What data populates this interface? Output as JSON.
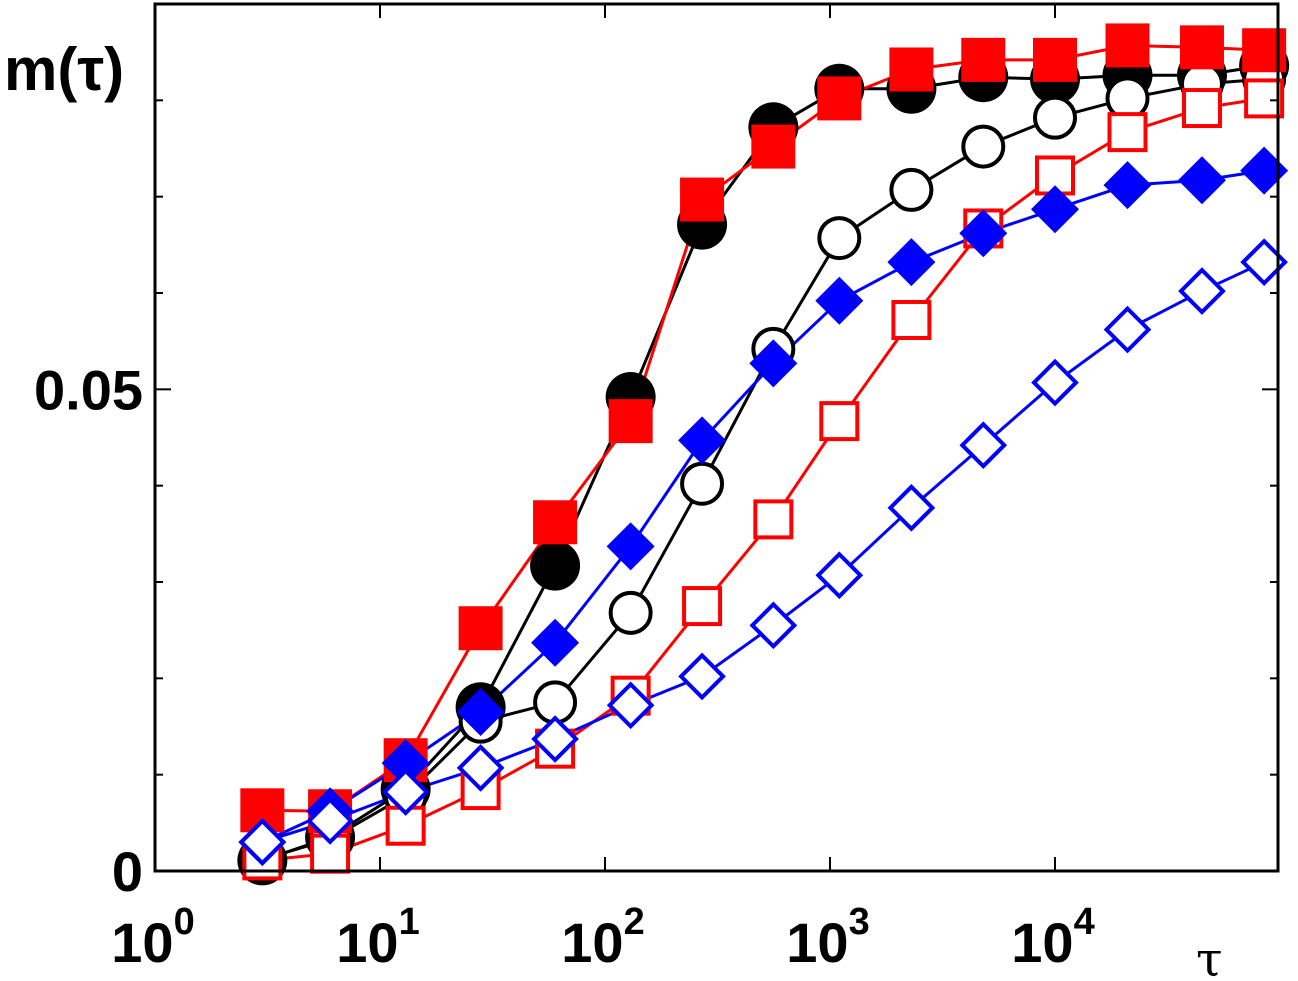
{
  "chart_data": {
    "type": "scatter",
    "title": "",
    "ylabel": "m(τ)",
    "xlabel": "τ",
    "x_scale": "log",
    "xlim": [
      1,
      90000
    ],
    "ylim": [
      0,
      0.09
    ],
    "x_ticks": [
      {
        "value": 1,
        "base": "10",
        "exp": "0"
      },
      {
        "value": 10,
        "base": "10",
        "exp": "1"
      },
      {
        "value": 100,
        "base": "10",
        "exp": "2"
      },
      {
        "value": 1000,
        "base": "10",
        "exp": "3"
      },
      {
        "value": 10000,
        "base": "10",
        "exp": "4"
      }
    ],
    "y_ticks": [
      {
        "value": 0,
        "label": "0"
      },
      {
        "value": 0.05,
        "label": "0.05"
      }
    ],
    "y_minor_step": 0.01,
    "grid": false,
    "series": [
      {
        "marker": "circle",
        "filled": true,
        "color": "#000000",
        "line_color": "#000000",
        "points": [
          [
            3,
            0.0011
          ],
          [
            6,
            0.0035
          ],
          [
            13,
            0.0085
          ],
          [
            28,
            0.017
          ],
          [
            60,
            0.0317
          ],
          [
            130,
            0.0492
          ],
          [
            270,
            0.0671
          ],
          [
            560,
            0.0772
          ],
          [
            1100,
            0.0812
          ],
          [
            2300,
            0.0812
          ],
          [
            4800,
            0.0824
          ],
          [
            10000,
            0.0822
          ],
          [
            21000,
            0.0826
          ],
          [
            45000,
            0.0826
          ],
          [
            85000,
            0.0836
          ]
        ]
      },
      {
        "marker": "circle",
        "filled": false,
        "color": "#000000",
        "line_color": "#000000",
        "points": [
          [
            3,
            0.0012
          ],
          [
            6,
            0.0033
          ],
          [
            13,
            0.0078
          ],
          [
            28,
            0.0155
          ],
          [
            60,
            0.0175
          ],
          [
            130,
            0.0268
          ],
          [
            270,
            0.0402
          ],
          [
            560,
            0.0542
          ],
          [
            1100,
            0.0657
          ],
          [
            2300,
            0.0707
          ],
          [
            4800,
            0.0752
          ],
          [
            10000,
            0.0782
          ],
          [
            21000,
            0.0802
          ],
          [
            45000,
            0.0817
          ],
          [
            85000,
            0.0822
          ]
        ]
      },
      {
        "marker": "square",
        "filled": true,
        "color": "#ff0000",
        "line_color": "#ff0000",
        "points": [
          [
            3,
            0.0063
          ],
          [
            6,
            0.0062
          ],
          [
            13,
            0.0115
          ],
          [
            28,
            0.0252
          ],
          [
            60,
            0.0362
          ],
          [
            130,
            0.0467
          ],
          [
            270,
            0.0697
          ],
          [
            560,
            0.0752
          ],
          [
            1100,
            0.0802
          ],
          [
            2300,
            0.0832
          ],
          [
            4800,
            0.0842
          ],
          [
            10000,
            0.0842
          ],
          [
            21000,
            0.0857
          ],
          [
            45000,
            0.0855
          ],
          [
            85000,
            0.0852
          ]
        ]
      },
      {
        "marker": "square",
        "filled": false,
        "color": "#ff0000",
        "line_color": "#ff0000",
        "points": [
          [
            3,
            0.0011
          ],
          [
            6,
            0.0018
          ],
          [
            13,
            0.0047
          ],
          [
            28,
            0.0084
          ],
          [
            60,
            0.0127
          ],
          [
            130,
            0.0182
          ],
          [
            270,
            0.0275
          ],
          [
            560,
            0.0365
          ],
          [
            1100,
            0.0467
          ],
          [
            2300,
            0.0572
          ],
          [
            4800,
            0.0667
          ],
          [
            10000,
            0.0722
          ],
          [
            21000,
            0.0767
          ],
          [
            45000,
            0.0792
          ],
          [
            85000,
            0.0802
          ]
        ]
      },
      {
        "marker": "diamond",
        "filled": true,
        "color": "#0000ff",
        "line_color": "#0000ff",
        "points": [
          [
            3,
            0.003
          ],
          [
            6,
            0.0062
          ],
          [
            13,
            0.0112
          ],
          [
            28,
            0.0165
          ],
          [
            60,
            0.0237
          ],
          [
            130,
            0.0337
          ],
          [
            270,
            0.0447
          ],
          [
            560,
            0.0527
          ],
          [
            1100,
            0.0592
          ],
          [
            2300,
            0.0632
          ],
          [
            4800,
            0.0662
          ],
          [
            10000,
            0.0687
          ],
          [
            21000,
            0.0712
          ],
          [
            45000,
            0.0717
          ],
          [
            85000,
            0.0727
          ]
        ]
      },
      {
        "marker": "diamond",
        "filled": false,
        "color": "#0000ff",
        "line_color": "#0000ff",
        "points": [
          [
            3,
            0.003
          ],
          [
            6,
            0.0052
          ],
          [
            13,
            0.0082
          ],
          [
            28,
            0.0107
          ],
          [
            60,
            0.0137
          ],
          [
            130,
            0.0172
          ],
          [
            270,
            0.0202
          ],
          [
            560,
            0.0255
          ],
          [
            1100,
            0.0307
          ],
          [
            2300,
            0.0377
          ],
          [
            4800,
            0.0442
          ],
          [
            10000,
            0.0507
          ],
          [
            21000,
            0.0562
          ],
          [
            45000,
            0.0602
          ],
          [
            85000,
            0.0632
          ]
        ]
      }
    ]
  }
}
